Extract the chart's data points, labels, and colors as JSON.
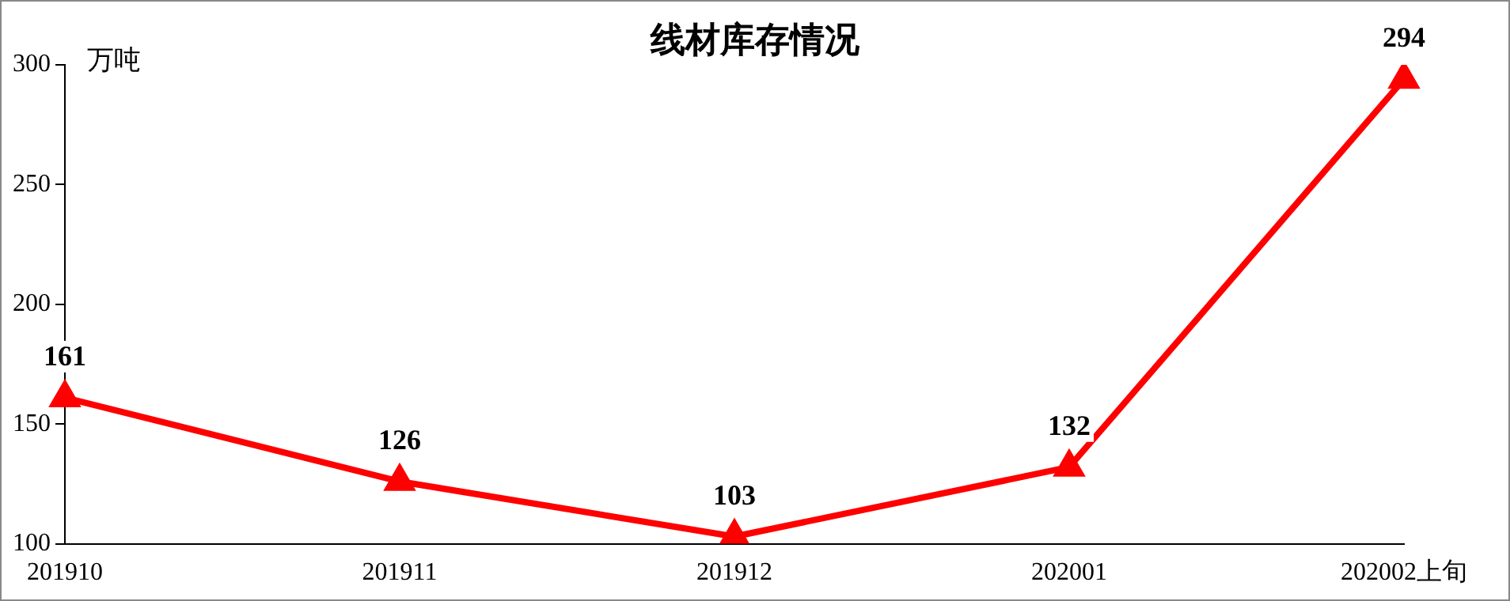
{
  "chart_data": {
    "type": "line",
    "title": "线材库存情况",
    "ylabel": "万吨",
    "categories": [
      "201910",
      "201911",
      "201912",
      "202001",
      "202002上旬"
    ],
    "series": [
      {
        "color": "#ff0000",
        "values": [
          161,
          126,
          103,
          132,
          294
        ]
      }
    ],
    "ylim": [
      100,
      300
    ],
    "yticks": [
      100,
      150,
      200,
      250,
      300
    ],
    "grid": false,
    "legend": false,
    "marker": "triangle",
    "line_style": "solid",
    "data_labels": true
  }
}
